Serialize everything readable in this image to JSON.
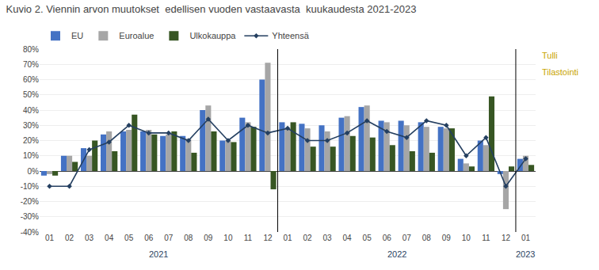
{
  "chart_data": {
    "type": "bar",
    "title": "Kuvio 2. Viennin arvon muutokset  edellisen vuoden vastaavasta  kuukaudesta 2021-2023",
    "categories": [
      "01",
      "02",
      "03",
      "04",
      "05",
      "06",
      "07",
      "08",
      "09",
      "10",
      "11",
      "12",
      "01",
      "02",
      "03",
      "04",
      "05",
      "06",
      "07",
      "08",
      "09",
      "10",
      "11",
      "12",
      "01"
    ],
    "series": [
      {
        "name": "EU",
        "color": "#4472C4",
        "values": [
          -3,
          10,
          15,
          24,
          26,
          26,
          23,
          23,
          40,
          20,
          35,
          60,
          32,
          31,
          30,
          35,
          42,
          33,
          33,
          32,
          29,
          8,
          20,
          -2,
          8
        ]
      },
      {
        "name": "Euroalue",
        "color": "#A6A6A6",
        "values": [
          -2,
          10,
          10,
          26,
          27,
          27,
          24,
          21,
          43,
          20,
          32,
          71,
          28,
          28,
          26,
          36,
          43,
          32,
          30,
          29,
          28,
          5,
          17,
          -25,
          10
        ]
      },
      {
        "name": "Ulkokauppa",
        "color": "#375623",
        "values": [
          -3,
          6,
          20,
          13,
          37,
          24,
          26,
          12,
          26,
          19,
          29,
          -12,
          32,
          16,
          16,
          23,
          22,
          17,
          13,
          12,
          28,
          3,
          49,
          3,
          4
        ]
      },
      {
        "name": "Yhteensä",
        "type": "line",
        "color": "#243F60",
        "marker": "diamond",
        "values": [
          -10,
          -10,
          14,
          19,
          30,
          25,
          25,
          20,
          34,
          20,
          30,
          25,
          28,
          20,
          20,
          25,
          33,
          26,
          22,
          33,
          30,
          10,
          22,
          -10,
          8
        ]
      }
    ],
    "ylim": [
      -40,
      80
    ],
    "yticks": [
      {
        "value": -40,
        "label": "-40%"
      },
      {
        "value": -30,
        "label": "-30%"
      },
      {
        "value": -20,
        "label": "-20%"
      },
      {
        "value": -10,
        "label": "-10%"
      },
      {
        "value": 0,
        "label": "0%"
      },
      {
        "value": 10,
        "label": "10%"
      },
      {
        "value": 20,
        "label": "20%"
      },
      {
        "value": 30,
        "label": "30%"
      },
      {
        "value": 40,
        "label": "40%"
      },
      {
        "value": 50,
        "label": "50%"
      },
      {
        "value": 60,
        "label": "60%"
      },
      {
        "value": 70,
        "label": "70%"
      },
      {
        "value": 80,
        "label": "80%"
      }
    ],
    "grid": true,
    "legend": "upper left",
    "annotations": [
      "Tulli",
      "Tilastointi",
      "2021",
      "2022",
      "2023"
    ]
  }
}
